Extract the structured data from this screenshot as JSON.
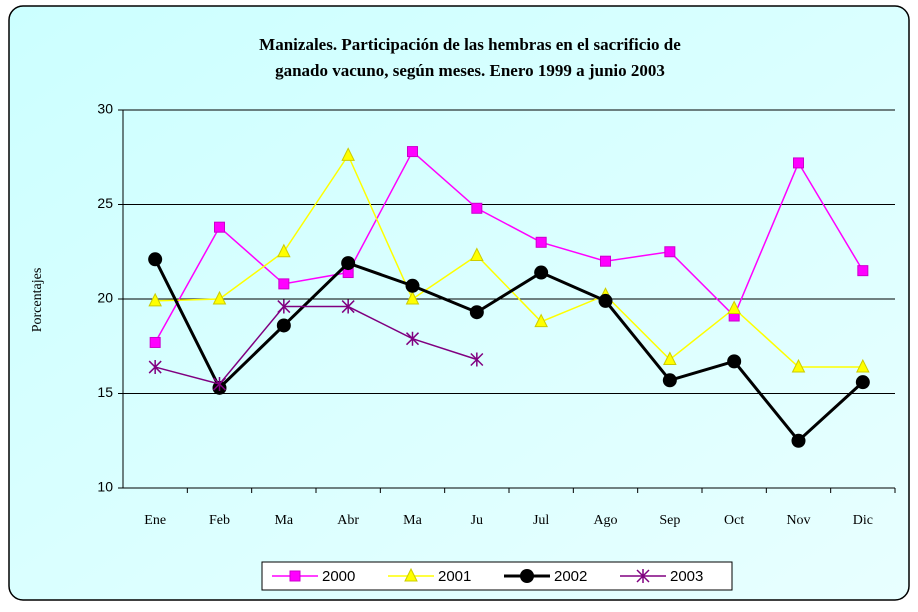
{
  "chart_data": {
    "type": "line",
    "title": [
      "Manizales. Participación de las hembras en el sacrificio de",
      "ganado vacuno, según meses. Enero 1999 a junio 2003"
    ],
    "y_label": "Porcentajes",
    "categories": [
      "Ene",
      "Feb",
      "Ma",
      "Abr",
      "Ma",
      "Ju",
      "Jul",
      "Ago",
      "Sep",
      "Oct",
      "Nov",
      "Dic"
    ],
    "series": [
      {
        "name": "2000",
        "color": "#ff00ff",
        "marker": "square",
        "values": [
          17.7,
          23.8,
          20.8,
          21.4,
          27.8,
          24.8,
          23.0,
          22.0,
          22.5,
          19.1,
          27.2,
          21.5
        ]
      },
      {
        "name": "2001",
        "color": "#ffff00",
        "marker": "triangle",
        "values": [
          19.9,
          20.0,
          22.5,
          27.6,
          20.0,
          22.3,
          18.8,
          20.2,
          16.8,
          19.5,
          16.4,
          16.4
        ]
      },
      {
        "name": "2002",
        "color": "#000000",
        "marker": "circle",
        "values": [
          22.1,
          15.3,
          18.6,
          21.9,
          20.7,
          19.3,
          21.4,
          19.9,
          15.7,
          16.7,
          12.5,
          15.6
        ]
      },
      {
        "name": "2003",
        "color": "#800080",
        "marker": "star",
        "values": [
          16.4,
          15.5,
          19.6,
          19.6,
          17.9,
          16.8,
          null,
          null,
          null,
          null,
          null,
          null
        ]
      }
    ],
    "ylim": [
      10,
      30
    ],
    "yticks": [
      10,
      15,
      20,
      25,
      30
    ],
    "grid": true
  }
}
